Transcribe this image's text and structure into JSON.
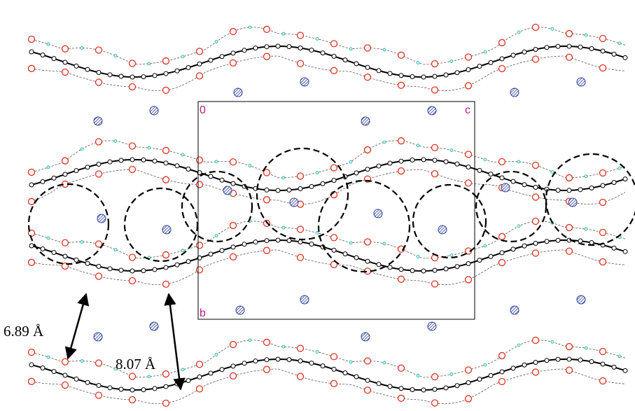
{
  "cell_axes": {
    "origin": "0",
    "c_axis": "c",
    "b_axis": "b"
  },
  "distances": [
    "6.89 Å",
    "8.07 Å"
  ]
}
